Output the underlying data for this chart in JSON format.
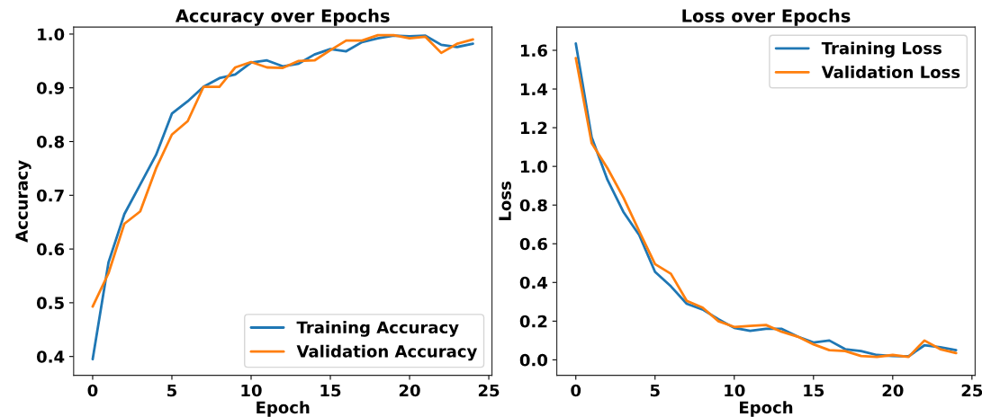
{
  "chart_data": [
    {
      "type": "line",
      "title": "Accuracy over Epochs",
      "xlabel": "Epoch",
      "ylabel": "Accuracy",
      "x": [
        0,
        1,
        2,
        3,
        4,
        5,
        6,
        7,
        8,
        9,
        10,
        11,
        12,
        13,
        14,
        15,
        16,
        17,
        18,
        19,
        20,
        21,
        22,
        23,
        24
      ],
      "series": [
        {
          "name": "Training Accuracy",
          "color": "#1f77b4",
          "values": [
            0.395,
            0.575,
            0.665,
            0.72,
            0.775,
            0.852,
            0.875,
            0.902,
            0.918,
            0.925,
            0.947,
            0.951,
            0.94,
            0.945,
            0.962,
            0.972,
            0.968,
            0.985,
            0.992,
            0.997,
            0.996,
            0.997,
            0.98,
            0.976,
            0.982
          ]
        },
        {
          "name": "Validation Accuracy",
          "color": "#ff7f0e",
          "values": [
            0.493,
            0.555,
            0.647,
            0.67,
            0.75,
            0.813,
            0.838,
            0.902,
            0.902,
            0.938,
            0.948,
            0.938,
            0.937,
            0.95,
            0.951,
            0.97,
            0.988,
            0.988,
            0.998,
            0.998,
            0.992,
            0.995,
            0.965,
            0.982,
            0.99
          ]
        }
      ],
      "xlim": [
        -1.2,
        25.2
      ],
      "ylim": [
        0.365,
        1.013
      ],
      "xticks": [
        0,
        5,
        10,
        15,
        20,
        25
      ],
      "yticks": [
        {
          "value": 0.4,
          "label": "0.4"
        },
        {
          "value": 0.5,
          "label": "0.5"
        },
        {
          "value": 0.6,
          "label": "0.6"
        },
        {
          "value": 0.7,
          "label": "0.7"
        },
        {
          "value": 0.8,
          "label": "0.8"
        },
        {
          "value": 0.9,
          "label": "0.9"
        },
        {
          "value": 1.0,
          "label": "1.0"
        }
      ],
      "legend": "bottom right",
      "grid": false
    },
    {
      "type": "line",
      "title": "Loss over Epochs",
      "xlabel": "Epoch",
      "ylabel": "Loss",
      "x": [
        0,
        1,
        2,
        3,
        4,
        5,
        6,
        7,
        8,
        9,
        10,
        11,
        12,
        13,
        14,
        15,
        16,
        17,
        18,
        19,
        20,
        21,
        22,
        23,
        24
      ],
      "series": [
        {
          "name": "Training Loss",
          "color": "#1f77b4",
          "values": [
            1.635,
            1.15,
            0.93,
            0.765,
            0.645,
            0.455,
            0.38,
            0.29,
            0.26,
            0.21,
            0.165,
            0.15,
            0.16,
            0.16,
            0.12,
            0.09,
            0.1,
            0.055,
            0.045,
            0.025,
            0.02,
            0.018,
            0.075,
            0.065,
            0.05
          ]
        },
        {
          "name": "Validation Loss",
          "color": "#ff7f0e",
          "values": [
            1.56,
            1.12,
            0.99,
            0.84,
            0.665,
            0.495,
            0.445,
            0.305,
            0.27,
            0.2,
            0.17,
            0.175,
            0.18,
            0.145,
            0.12,
            0.08,
            0.05,
            0.045,
            0.02,
            0.015,
            0.025,
            0.015,
            0.1,
            0.055,
            0.035
          ]
        }
      ],
      "xlim": [
        -1.2,
        25.2
      ],
      "ylim": [
        -0.08,
        1.72
      ],
      "xticks": [
        0,
        5,
        10,
        15,
        20,
        25
      ],
      "yticks": [
        {
          "value": 0,
          "label": "0.0"
        },
        {
          "value": 0.2,
          "label": "0.2"
        },
        {
          "value": 0.4,
          "label": "0.4"
        },
        {
          "value": 0.6,
          "label": "0.6"
        },
        {
          "value": 0.8,
          "label": "0.8"
        },
        {
          "value": 1.0,
          "label": "1.0"
        },
        {
          "value": 1.2,
          "label": "1.2"
        },
        {
          "value": 1.4,
          "label": "1.4"
        },
        {
          "value": 1.6,
          "label": "1.6"
        }
      ],
      "legend": "top right",
      "grid": false
    }
  ]
}
